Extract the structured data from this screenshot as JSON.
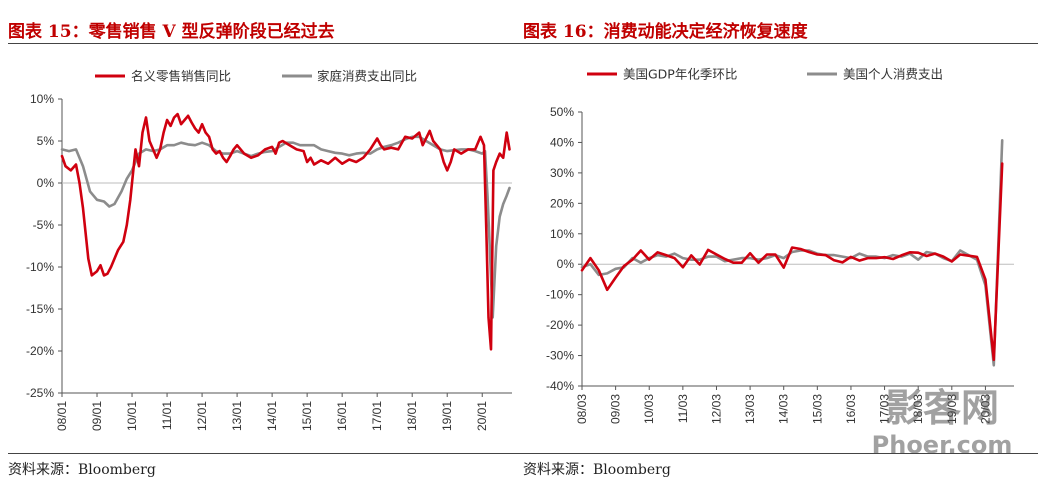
{
  "panels": [
    {
      "title": "图表 15：零售销售 V 型反弹阶段已经过去",
      "source": "资料来源：Bloomberg"
    },
    {
      "title": "图表 16：消费动能决定经济恢复速度",
      "source": "资料来源：Bloomberg"
    }
  ],
  "watermark": {
    "line1": "影客网",
    "line2": "Phoer.com"
  },
  "colors": {
    "title": "#c00000",
    "series_red": "#d0000f",
    "series_gray": "#8c8c8c"
  },
  "chart_data": [
    {
      "type": "line",
      "title": "",
      "ylim": [
        -25,
        10
      ],
      "yticks": [
        10,
        5,
        0,
        -5,
        -10,
        -15,
        -20,
        -25
      ],
      "ytick_labels": [
        "10%",
        "5%",
        "0%",
        "-5%",
        "-10%",
        "-15%",
        "-20%",
        "-25%"
      ],
      "xlim": [
        2008.0,
        2020.85
      ],
      "xticks": [
        2008,
        2009,
        2010,
        2011,
        2012,
        2013,
        2014,
        2015,
        2016,
        2017,
        2018,
        2019,
        2020
      ],
      "xtick_labels": [
        "08/01",
        "09/01",
        "10/01",
        "11/01",
        "12/01",
        "13/01",
        "14/01",
        "15/01",
        "16/01",
        "17/01",
        "18/01",
        "19/01",
        "20/01"
      ],
      "legend": "top",
      "series": [
        {
          "name": "名义零售销售同比",
          "color": "#d0000f",
          "x": [
            2008.0,
            2008.1,
            2008.25,
            2008.4,
            2008.5,
            2008.6,
            2008.75,
            2008.85,
            2009.0,
            2009.1,
            2009.2,
            2009.3,
            2009.4,
            2009.5,
            2009.6,
            2009.75,
            2009.85,
            2009.95,
            2010.0,
            2010.1,
            2010.2,
            2010.3,
            2010.4,
            2010.5,
            2010.6,
            2010.7,
            2010.8,
            2010.9,
            2011.0,
            2011.1,
            2011.2,
            2011.3,
            2011.4,
            2011.5,
            2011.6,
            2011.7,
            2011.8,
            2011.9,
            2012.0,
            2012.1,
            2012.2,
            2012.3,
            2012.4,
            2012.5,
            2012.6,
            2012.7,
            2012.8,
            2012.9,
            2013.0,
            2013.2,
            2013.4,
            2013.6,
            2013.8,
            2014.0,
            2014.1,
            2014.2,
            2014.3,
            2014.5,
            2014.7,
            2014.9,
            2015.0,
            2015.1,
            2015.2,
            2015.4,
            2015.6,
            2015.8,
            2016.0,
            2016.2,
            2016.4,
            2016.6,
            2016.8,
            2017.0,
            2017.1,
            2017.2,
            2017.4,
            2017.6,
            2017.8,
            2018.0,
            2018.2,
            2018.3,
            2018.5,
            2018.6,
            2018.7,
            2018.8,
            2018.9,
            2019.0,
            2019.1,
            2019.2,
            2019.4,
            2019.6,
            2019.8,
            2019.95,
            2020.05,
            2020.12,
            2020.18,
            2020.25,
            2020.32,
            2020.4,
            2020.5,
            2020.6,
            2020.7,
            2020.78
          ],
          "y": [
            3.2,
            2.0,
            1.5,
            2.2,
            0.0,
            -3.0,
            -9.0,
            -11.0,
            -10.5,
            -9.8,
            -11.0,
            -10.8,
            -10.0,
            -9.0,
            -8.0,
            -7.0,
            -5.0,
            -2.0,
            0.0,
            4.0,
            2.0,
            6.0,
            7.8,
            5.0,
            4.0,
            3.0,
            4.0,
            6.0,
            7.5,
            6.8,
            7.8,
            8.2,
            7.0,
            7.5,
            8.0,
            7.2,
            6.5,
            6.0,
            7.0,
            6.0,
            5.5,
            4.0,
            3.5,
            3.8,
            3.0,
            2.5,
            3.2,
            4.0,
            4.5,
            3.5,
            3.0,
            3.3,
            4.0,
            4.3,
            3.5,
            4.8,
            5.0,
            4.5,
            4.0,
            3.8,
            2.5,
            3.0,
            2.2,
            2.7,
            2.3,
            3.0,
            2.3,
            2.8,
            2.5,
            3.0,
            4.0,
            5.3,
            4.5,
            4.0,
            4.2,
            4.0,
            5.5,
            5.3,
            6.0,
            4.5,
            6.2,
            5.0,
            4.5,
            4.0,
            2.5,
            1.5,
            2.5,
            4.0,
            3.5,
            4.0,
            4.0,
            5.5,
            4.5,
            -6.0,
            -16.0,
            -19.8,
            1.5,
            2.5,
            3.5,
            3.0,
            6.0,
            4.0
          ]
        },
        {
          "name": "家庭消费支出同比",
          "color": "#8c8c8c",
          "x": [
            2008.0,
            2008.2,
            2008.4,
            2008.6,
            2008.8,
            2009.0,
            2009.2,
            2009.35,
            2009.5,
            2009.7,
            2009.85,
            2010.0,
            2010.2,
            2010.4,
            2010.6,
            2010.8,
            2011.0,
            2011.2,
            2011.4,
            2011.6,
            2011.8,
            2012.0,
            2012.2,
            2012.4,
            2012.6,
            2012.8,
            2013.0,
            2013.2,
            2013.4,
            2013.6,
            2013.8,
            2014.0,
            2014.2,
            2014.4,
            2014.6,
            2014.8,
            2015.0,
            2015.2,
            2015.4,
            2015.6,
            2015.8,
            2016.0,
            2016.2,
            2016.4,
            2016.6,
            2016.8,
            2017.0,
            2017.2,
            2017.4,
            2017.6,
            2017.8,
            2018.0,
            2018.2,
            2018.4,
            2018.6,
            2018.8,
            2019.0,
            2019.2,
            2019.4,
            2019.6,
            2019.8,
            2020.0,
            2020.08,
            2020.15,
            2020.22,
            2020.3,
            2020.4,
            2020.5,
            2020.6,
            2020.7,
            2020.78
          ],
          "y": [
            4.0,
            3.8,
            4.0,
            2.0,
            -1.0,
            -2.0,
            -2.2,
            -2.8,
            -2.5,
            -1.0,
            0.5,
            1.5,
            3.5,
            4.0,
            3.8,
            4.0,
            4.5,
            4.5,
            4.8,
            4.6,
            4.5,
            4.8,
            4.5,
            3.8,
            3.5,
            3.5,
            3.8,
            3.5,
            3.2,
            3.5,
            3.7,
            3.8,
            4.3,
            4.8,
            4.8,
            4.5,
            4.5,
            4.5,
            4.0,
            3.8,
            3.6,
            3.5,
            3.3,
            3.5,
            3.6,
            3.5,
            4.0,
            4.3,
            4.5,
            4.8,
            5.2,
            5.5,
            5.5,
            5.0,
            4.5,
            4.0,
            3.8,
            3.9,
            4.0,
            4.0,
            3.8,
            3.5,
            3.8,
            -1.5,
            -8.0,
            -16.0,
            -7.5,
            -4.0,
            -2.5,
            -1.5,
            -0.6
          ]
        }
      ]
    },
    {
      "type": "line",
      "title": "",
      "ylim": [
        -40,
        50
      ],
      "yticks": [
        50,
        40,
        30,
        20,
        10,
        0,
        -10,
        -20,
        -30,
        -40
      ],
      "ytick_labels": [
        "50%",
        "40%",
        "30%",
        "20%",
        "10%",
        "0%",
        "-10%",
        "-20%",
        "-30%",
        "-40%"
      ],
      "xlim": [
        2008.0,
        2020.85
      ],
      "xticks": [
        2008,
        2009,
        2010,
        2011,
        2012,
        2013,
        2014,
        2015,
        2016,
        2017,
        2018,
        2019,
        2020
      ],
      "xtick_labels": [
        "08/03",
        "09/03",
        "10/03",
        "11/03",
        "12/03",
        "13/03",
        "14/03",
        "15/03",
        "16/03",
        "17/03",
        "18/03",
        "19/03",
        "20/03"
      ],
      "legend": "top",
      "series": [
        {
          "name": "美国GDP年化季环比",
          "color": "#d0000f",
          "x": [
            2008.0,
            2008.25,
            2008.5,
            2008.75,
            2009.0,
            2009.25,
            2009.5,
            2009.75,
            2010.0,
            2010.25,
            2010.5,
            2010.75,
            2011.0,
            2011.25,
            2011.5,
            2011.75,
            2012.0,
            2012.25,
            2012.5,
            2012.75,
            2013.0,
            2013.25,
            2013.5,
            2013.75,
            2014.0,
            2014.25,
            2014.5,
            2014.75,
            2015.0,
            2015.25,
            2015.5,
            2015.75,
            2016.0,
            2016.25,
            2016.5,
            2016.75,
            2017.0,
            2017.25,
            2017.5,
            2017.75,
            2018.0,
            2018.25,
            2018.5,
            2018.75,
            2019.0,
            2019.25,
            2019.5,
            2019.75,
            2020.0,
            2020.25,
            2020.5
          ],
          "y": [
            -2.0,
            2.0,
            -2.0,
            -8.4,
            -4.4,
            -0.6,
            1.5,
            4.5,
            1.5,
            3.9,
            3.0,
            2.0,
            -1.0,
            2.9,
            -0.1,
            4.7,
            3.2,
            1.7,
            0.5,
            0.5,
            3.6,
            0.5,
            3.2,
            3.2,
            -1.1,
            5.5,
            5.0,
            4.0,
            3.2,
            3.0,
            1.3,
            0.6,
            2.4,
            1.2,
            2.0,
            2.0,
            2.3,
            1.7,
            2.9,
            3.9,
            3.8,
            2.7,
            3.5,
            2.5,
            0.9,
            3.2,
            2.8,
            2.4,
            -5.0,
            -31.4,
            33.1
          ]
        },
        {
          "name": "美国个人消费支出",
          "color": "#8c8c8c",
          "x": [
            2008.0,
            2008.25,
            2008.5,
            2008.75,
            2009.0,
            2009.25,
            2009.5,
            2009.75,
            2010.0,
            2010.25,
            2010.5,
            2010.75,
            2011.0,
            2011.25,
            2011.5,
            2011.75,
            2012.0,
            2012.25,
            2012.5,
            2012.75,
            2013.0,
            2013.25,
            2013.5,
            2013.75,
            2014.0,
            2014.25,
            2014.5,
            2014.75,
            2015.0,
            2015.25,
            2015.5,
            2015.75,
            2016.0,
            2016.25,
            2016.5,
            2016.75,
            2017.0,
            2017.25,
            2017.5,
            2017.75,
            2018.0,
            2018.25,
            2018.5,
            2018.75,
            2019.0,
            2019.25,
            2019.5,
            2019.75,
            2020.0,
            2020.25,
            2020.5
          ],
          "y": [
            -1.0,
            0.0,
            -3.5,
            -3.0,
            -1.5,
            -1.0,
            2.0,
            0.5,
            2.0,
            3.0,
            2.5,
            3.5,
            2.0,
            1.5,
            1.5,
            2.5,
            2.5,
            1.0,
            1.5,
            2.0,
            2.0,
            1.5,
            2.0,
            3.0,
            2.0,
            4.0,
            4.5,
            4.5,
            3.5,
            3.0,
            3.0,
            2.5,
            2.0,
            3.5,
            2.5,
            2.5,
            2.0,
            3.0,
            2.5,
            3.5,
            1.5,
            4.0,
            3.5,
            2.0,
            1.0,
            4.5,
            3.0,
            1.5,
            -6.9,
            -33.2,
            40.7
          ]
        }
      ]
    }
  ]
}
